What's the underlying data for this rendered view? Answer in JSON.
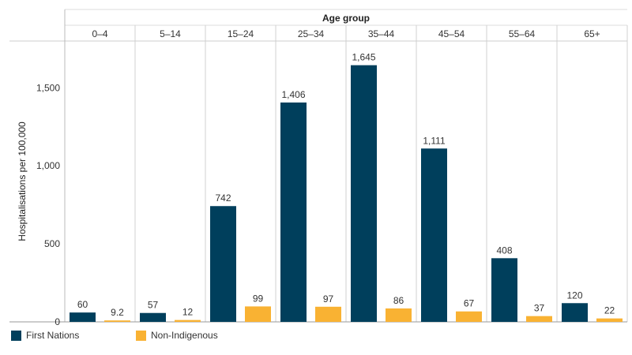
{
  "chart_data": {
    "type": "bar",
    "title": "",
    "column_header": "Age group",
    "ylabel": "Hospitalisations per 100,000",
    "categories": [
      "0–4",
      "5–14",
      "15–24",
      "25–34",
      "35–44",
      "45–54",
      "55–64",
      "65+"
    ],
    "series": [
      {
        "name": "First Nations",
        "color": "#003f5c",
        "values": [
          60,
          57,
          742,
          1406,
          1645,
          1111,
          408,
          120
        ],
        "labels": [
          "60",
          "57",
          "742",
          "1,406",
          "1,645",
          "1,111",
          "408",
          "120"
        ]
      },
      {
        "name": "Non-Indigenous",
        "color": "#f9b233",
        "values": [
          9.2,
          12,
          99,
          97,
          86,
          67,
          37,
          22
        ],
        "labels": [
          "9.2",
          "12",
          "99",
          "97",
          "86",
          "67",
          "37",
          "22"
        ]
      }
    ],
    "yticks": [
      0,
      500,
      1000,
      1500
    ],
    "ytick_labels": [
      "0",
      "500",
      "1,000",
      "1,500"
    ],
    "ylim": [
      0,
      1800
    ],
    "grid": false,
    "legend_position": "bottom-left"
  }
}
